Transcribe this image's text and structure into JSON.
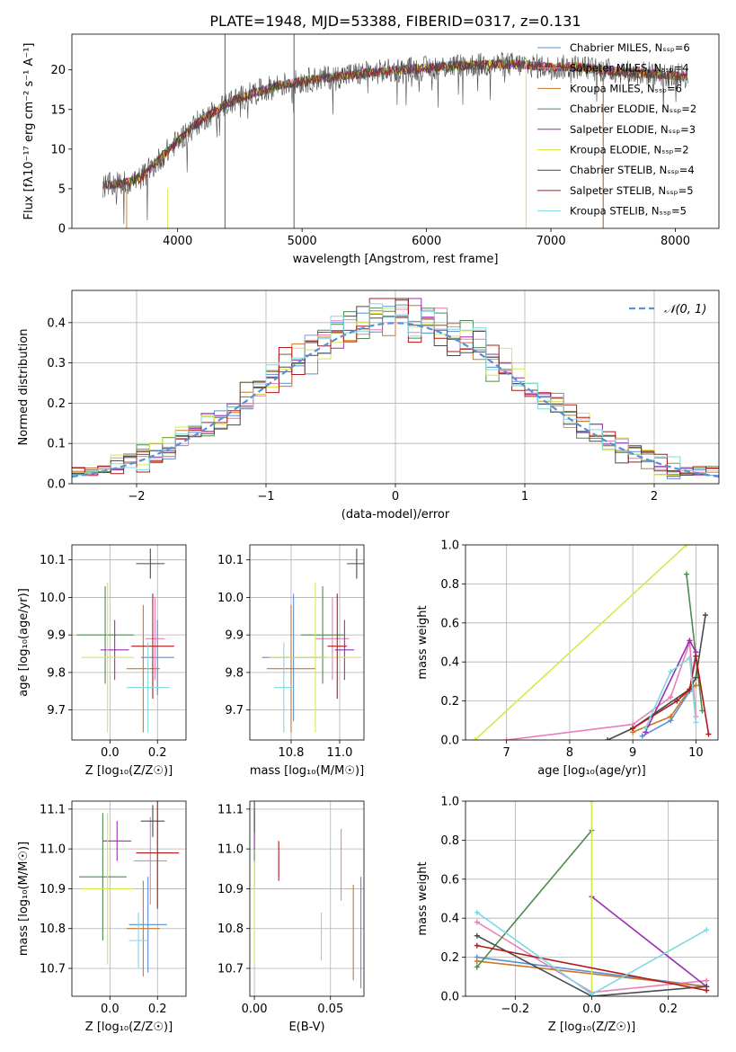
{
  "title": "PLATE=1948, MJD=53388, FIBERID=0317, z=0.131",
  "colors": {
    "Chabrier MILES": "#5b8fd6",
    "Salpeter MILES": "#e87fb8",
    "Kroupa MILES": "#c8782a",
    "Chabrier ELODIE": "#4f8a4f",
    "Salpeter ELODIE": "#9b2fb3",
    "Kroupa ELODIE": "#d6e84a",
    "Chabrier STELIB": "#4a4a4a",
    "Salpeter STELIB": "#b01a1a",
    "Kroupa STELIB": "#7fd9df",
    "gaussian": "#5b8fd6"
  },
  "chart_data": [
    {
      "id": "spectrum",
      "type": "line",
      "xlabel": "wavelength [Angstrom, rest frame]",
      "ylabel": "Flux [fλ10⁻¹⁷ erg cm⁻² s⁻¹ A⁻¹]",
      "xlim": [
        3150,
        8350
      ],
      "ylim": [
        0,
        24.5
      ],
      "xticks": [
        "4000",
        "5000",
        "6000",
        "7000",
        "8000"
      ],
      "yticks": [
        "0",
        "5",
        "10",
        "15",
        "20"
      ],
      "grid": false,
      "legend_position": "right",
      "legend": [
        "Chabrier MILES, Nₛₛₚ=6",
        "Salpeter MILES, Nₛₛₚ=4",
        "Kroupa MILES, Nₛₛₚ=6",
        "Chabrier ELODIE, Nₛₛₚ=2",
        "Salpeter ELODIE, Nₛₛₚ=3",
        "Kroupa ELODIE, Nₛₛₚ=2",
        "Chabrier STELIB, Nₛₛₚ=4",
        "Salpeter STELIB, Nₛₛₚ=5",
        "Kroupa STELIB, Nₛₛₚ=5"
      ],
      "continuum": {
        "x": [
          3400,
          3500,
          3600,
          3700,
          3800,
          3900,
          4000,
          4100,
          4200,
          4300,
          4400,
          4600,
          4800,
          5000,
          5200,
          5400,
          5600,
          5800,
          6000,
          6200,
          6400,
          6600,
          6800,
          7000,
          7200,
          7400,
          7600,
          7800,
          8000,
          8100
        ],
        "y": [
          5.3,
          5.6,
          5.8,
          6.3,
          7.8,
          9.5,
          11.0,
          12.5,
          13.8,
          14.8,
          15.8,
          17.0,
          18.0,
          18.6,
          19.0,
          19.4,
          19.7,
          20.0,
          20.2,
          20.5,
          20.6,
          20.7,
          20.6,
          20.3,
          20.4,
          20.0,
          19.7,
          19.5,
          19.3,
          19.2
        ]
      },
      "note_lines": [
        {
          "series": "Chabrier MILES",
          "x_end": 7420
        },
        {
          "series": "Kroupa MILES",
          "x_end": 7420
        },
        {
          "series": "Kroupa ELODIE",
          "x_end": 6800
        }
      ]
    },
    {
      "id": "residuals",
      "type": "histogram",
      "xlabel": "(data-model)/error",
      "ylabel": "Normed distribution",
      "xlim": [
        -2.5,
        2.5
      ],
      "ylim": [
        0,
        0.48
      ],
      "xticks": [
        "−2",
        "−1",
        "0",
        "1",
        "2"
      ],
      "yticks": [
        "0.0",
        "0.1",
        "0.2",
        "0.3",
        "0.4"
      ],
      "grid": true,
      "legend_position": "top-right",
      "legend": [
        "𝒩(0, 1)"
      ],
      "bin_width": 0.1
    },
    {
      "id": "age-vs-z",
      "type": "errorbar",
      "xlabel": "Z [log₁₀(Z/Z☉)]",
      "ylabel": "age  [log₁₀(age/yr)]",
      "xlim": [
        -0.16,
        0.32
      ],
      "ylim": [
        9.62,
        10.14
      ],
      "xticks": [
        "0.0",
        "0.2"
      ],
      "yticks": [
        "9.7",
        "9.8",
        "9.9",
        "10.0",
        "10.1"
      ],
      "grid": true,
      "points": [
        {
          "series": "Chabrier MILES",
          "x": 0.2,
          "y": 9.84,
          "xerr": 0.07,
          "yerr": 0.1
        },
        {
          "series": "Salpeter MILES",
          "x": 0.19,
          "y": 9.89,
          "xerr": 0.04,
          "yerr": 0.11
        },
        {
          "series": "Kroupa MILES",
          "x": 0.14,
          "y": 9.81,
          "xerr": 0.07,
          "yerr": 0.17
        },
        {
          "series": "Chabrier ELODIE",
          "x": -0.02,
          "y": 9.9,
          "xerr": 0.12,
          "yerr": 0.13
        },
        {
          "series": "Salpeter ELODIE",
          "x": 0.02,
          "y": 9.86,
          "xerr": 0.06,
          "yerr": 0.08
        },
        {
          "series": "Kroupa ELODIE",
          "x": -0.01,
          "y": 9.84,
          "xerr": 0.11,
          "yerr": 0.2
        },
        {
          "series": "Chabrier STELIB",
          "x": 0.17,
          "y": 10.09,
          "xerr": 0.06,
          "yerr": 0.04
        },
        {
          "series": "Salpeter STELIB",
          "x": 0.18,
          "y": 9.87,
          "xerr": 0.09,
          "yerr": 0.14
        },
        {
          "series": "Kroupa STELIB",
          "x": 0.16,
          "y": 9.76,
          "xerr": 0.09,
          "yerr": 0.12
        }
      ]
    },
    {
      "id": "age-vs-mass",
      "type": "errorbar",
      "xlabel": "mass [log₁₀(M/M☉)]",
      "ylabel": "",
      "xlim": [
        10.63,
        11.1
      ],
      "ylim": [
        9.62,
        10.14
      ],
      "xticks": [
        "10.8",
        "11.0"
      ],
      "yticks": [
        "9.7",
        "9.8",
        "9.9",
        "10.0",
        "10.1"
      ],
      "grid": true,
      "points": [
        {
          "series": "Chabrier MILES",
          "x": 10.81,
          "y": 9.84,
          "xerr": 0.13,
          "yerr": 0.17
        },
        {
          "series": "Salpeter MILES",
          "x": 10.97,
          "y": 9.89,
          "xerr": 0.07,
          "yerr": 0.11
        },
        {
          "series": "Kroupa MILES",
          "x": 10.8,
          "y": 9.81,
          "xerr": 0.1,
          "yerr": 0.17
        },
        {
          "series": "Chabrier ELODIE",
          "x": 10.93,
          "y": 9.9,
          "xerr": 0.09,
          "yerr": 0.13
        },
        {
          "series": "Salpeter ELODIE",
          "x": 11.02,
          "y": 9.86,
          "xerr": 0.04,
          "yerr": 0.08
        },
        {
          "series": "Kroupa ELODIE",
          "x": 10.9,
          "y": 9.84,
          "xerr": 0.19,
          "yerr": 0.2
        },
        {
          "series": "Chabrier STELIB",
          "x": 11.07,
          "y": 10.09,
          "xerr": 0.04,
          "yerr": 0.04
        },
        {
          "series": "Salpeter STELIB",
          "x": 10.99,
          "y": 9.87,
          "xerr": 0.04,
          "yerr": 0.14
        },
        {
          "series": "Kroupa STELIB",
          "x": 10.77,
          "y": 9.76,
          "xerr": 0.04,
          "yerr": 0.12
        }
      ]
    },
    {
      "id": "massweight-vs-age",
      "type": "line",
      "xlabel": "age  [log₁₀(age/yr)]",
      "ylabel": "mass weight",
      "xlim": [
        6.35,
        10.35
      ],
      "ylim": [
        0,
        1.0
      ],
      "xticks": [
        "7",
        "8",
        "9",
        "10"
      ],
      "yticks": [
        "0.0",
        "0.2",
        "0.4",
        "0.6",
        "0.8",
        "1.0"
      ],
      "grid": true,
      "series": [
        {
          "name": "Chabrier MILES",
          "x": [
            9.15,
            9.6,
            9.9,
            10.0
          ],
          "y": [
            0.02,
            0.1,
            0.25,
            0.45
          ]
        },
        {
          "name": "Salpeter MILES",
          "x": [
            7.0,
            9.0,
            9.6,
            9.9,
            10.0
          ],
          "y": [
            0.0,
            0.08,
            0.22,
            0.5,
            0.12
          ]
        },
        {
          "name": "Kroupa MILES",
          "x": [
            9.0,
            9.6,
            9.9,
            10.0
          ],
          "y": [
            0.04,
            0.12,
            0.26,
            0.28
          ]
        },
        {
          "name": "Chabrier ELODIE",
          "x": [
            9.85,
            10.1
          ],
          "y": [
            0.85,
            0.15
          ]
        },
        {
          "name": "Salpeter ELODIE",
          "x": [
            9.2,
            9.9,
            10.0
          ],
          "y": [
            0.04,
            0.51,
            0.45
          ]
        },
        {
          "name": "Kroupa ELODIE",
          "x": [
            6.5,
            9.85
          ],
          "y": [
            0.0,
            1.0
          ]
        },
        {
          "name": "Chabrier STELIB",
          "x": [
            8.6,
            9.0,
            9.9,
            10.0,
            10.15
          ],
          "y": [
            0.0,
            0.06,
            0.26,
            0.32,
            0.64
          ]
        },
        {
          "name": "Salpeter STELIB",
          "x": [
            9.0,
            9.7,
            9.9,
            10.0,
            10.2
          ],
          "y": [
            0.06,
            0.2,
            0.26,
            0.43,
            0.03
          ]
        },
        {
          "name": "Kroupa STELIB",
          "x": [
            9.2,
            9.6,
            9.9,
            10.0
          ],
          "y": [
            0.06,
            0.35,
            0.42,
            0.09
          ]
        }
      ]
    },
    {
      "id": "mass-vs-z",
      "type": "errorbar",
      "xlabel": "Z [log₁₀(Z/Z☉)]",
      "ylabel": "mass [log₁₀(M/M☉)]",
      "xlim": [
        -0.16,
        0.32
      ],
      "ylim": [
        10.63,
        11.12
      ],
      "xticks": [
        "0.0",
        "0.2"
      ],
      "yticks": [
        "10.7",
        "10.8",
        "10.9",
        "11.0",
        "11.1"
      ],
      "grid": true,
      "points": [
        {
          "series": "Chabrier MILES",
          "x": 0.16,
          "y": 10.81,
          "xerr": 0.08,
          "yerr": 0.12
        },
        {
          "series": "Salpeter MILES",
          "x": 0.17,
          "y": 10.97,
          "xerr": 0.07,
          "yerr": 0.11
        },
        {
          "series": "Kroupa MILES",
          "x": 0.14,
          "y": 10.8,
          "xerr": 0.07,
          "yerr": 0.12
        },
        {
          "series": "Chabrier ELODIE",
          "x": -0.03,
          "y": 10.93,
          "xerr": 0.1,
          "yerr": 0.16
        },
        {
          "series": "Salpeter ELODIE",
          "x": 0.03,
          "y": 11.02,
          "xerr": 0.06,
          "yerr": 0.05
        },
        {
          "series": "Kroupa ELODIE",
          "x": -0.01,
          "y": 10.9,
          "xerr": 0.11,
          "yerr": 0.19
        },
        {
          "series": "Chabrier STELIB",
          "x": 0.18,
          "y": 11.07,
          "xerr": 0.05,
          "yerr": 0.04
        },
        {
          "series": "Salpeter STELIB",
          "x": 0.2,
          "y": 10.99,
          "xerr": 0.09,
          "yerr": 0.14
        },
        {
          "series": "Kroupa STELIB",
          "x": 0.12,
          "y": 10.77,
          "xerr": 0.04,
          "yerr": 0.07
        }
      ]
    },
    {
      "id": "mass-vs-ebv",
      "type": "errorbar",
      "xlabel": "E(B-V)",
      "ylabel": "",
      "xlim": [
        -0.003,
        0.072
      ],
      "ylim": [
        10.63,
        11.12
      ],
      "xticks": [
        "0.00",
        "0.05"
      ],
      "yticks": [
        "10.7",
        "10.8",
        "10.9",
        "11.0",
        "11.1"
      ],
      "grid": true,
      "points": [
        {
          "series": "Chabrier MILES",
          "x": 0.07,
          "y": 10.79,
          "xerr": 0.0,
          "yerr": 0.14
        },
        {
          "series": "Salpeter MILES",
          "x": 0.057,
          "y": 10.96,
          "xerr": 0.0,
          "yerr": 0.09
        },
        {
          "series": "Kroupa MILES",
          "x": 0.065,
          "y": 10.79,
          "xerr": 0.0,
          "yerr": 0.12
        },
        {
          "series": "Chabrier ELODIE",
          "x": 0.0,
          "y": 11.0,
          "xerr": 0.0,
          "yerr": 0.1
        },
        {
          "series": "Salpeter ELODIE",
          "x": 0.0,
          "y": 11.05,
          "xerr": 0.0,
          "yerr": 0.05
        },
        {
          "series": "Kroupa ELODIE",
          "x": 0.0,
          "y": 10.84,
          "xerr": 0.0,
          "yerr": 0.13
        },
        {
          "series": "Chabrier STELIB",
          "x": 0.0,
          "y": 11.08,
          "xerr": 0.0,
          "yerr": 0.04
        },
        {
          "series": "Salpeter STELIB",
          "x": 0.016,
          "y": 10.97,
          "xerr": 0.0,
          "yerr": 0.05
        },
        {
          "series": "Kroupa STELIB",
          "x": 0.044,
          "y": 10.78,
          "xerr": 0.0,
          "yerr": 0.06
        }
      ]
    },
    {
      "id": "massweight-vs-z",
      "type": "line",
      "xlabel": "Z [log₁₀(Z/Z☉)]",
      "ylabel": "mass weight",
      "xlim": [
        -0.33,
        0.33
      ],
      "ylim": [
        0,
        1.0
      ],
      "xticks": [
        "−0.2",
        "0.0",
        "0.2"
      ],
      "yticks": [
        "0.0",
        "0.2",
        "0.4",
        "0.6",
        "0.8",
        "1.0"
      ],
      "grid": true,
      "series": [
        {
          "name": "Chabrier MILES",
          "x": [
            -0.3,
            0.3
          ],
          "y": [
            0.2,
            0.05
          ]
        },
        {
          "name": "Salpeter MILES",
          "x": [
            -0.3,
            0.0,
            0.3
          ],
          "y": [
            0.38,
            0.02,
            0.08
          ]
        },
        {
          "name": "Kroupa MILES",
          "x": [
            -0.3,
            0.3
          ],
          "y": [
            0.18,
            0.05
          ]
        },
        {
          "name": "Chabrier ELODIE",
          "x": [
            -0.3,
            0.0
          ],
          "y": [
            0.15,
            0.85
          ]
        },
        {
          "name": "Salpeter ELODIE",
          "x": [
            0.0,
            0.3
          ],
          "y": [
            0.51,
            0.05
          ]
        },
        {
          "name": "Kroupa ELODIE",
          "x": [
            0.0,
            0.0
          ],
          "y": [
            0.0,
            1.0
          ]
        },
        {
          "name": "Chabrier STELIB",
          "x": [
            -0.3,
            0.0,
            0.3
          ],
          "y": [
            0.31,
            0.0,
            0.05
          ]
        },
        {
          "name": "Salpeter STELIB",
          "x": [
            -0.3,
            0.3
          ],
          "y": [
            0.26,
            0.03
          ]
        },
        {
          "name": "Kroupa STELIB",
          "x": [
            -0.3,
            0.0,
            0.3
          ],
          "y": [
            0.43,
            0.01,
            0.34
          ]
        }
      ]
    }
  ]
}
